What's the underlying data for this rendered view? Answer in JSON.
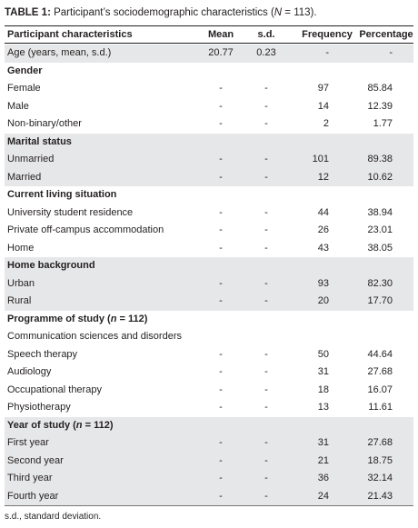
{
  "title": {
    "label": "TABLE 1:",
    "text": [
      "Participant’s sociodemographic characteristics (",
      "N",
      " = 113)."
    ]
  },
  "table": {
    "header": [
      "Participant characteristics",
      "Mean",
      "s.d.",
      "Frequency",
      "Percentage"
    ],
    "groups": [
      {
        "rows": [
          [
            "Age (years, mean, s.d.)",
            "20.77",
            "0.23",
            "-",
            "-"
          ]
        ]
      },
      {
        "heading": [
          "Gender"
        ],
        "rows": [
          [
            "Female",
            "-",
            "-",
            "97",
            "85.84"
          ],
          [
            "Male",
            "-",
            "-",
            "14",
            "12.39"
          ],
          [
            "Non-binary/other",
            "-",
            "-",
            "2",
            "1.77"
          ]
        ]
      },
      {
        "heading": [
          "Marital status"
        ],
        "rows": [
          [
            "Unmarried",
            "-",
            "-",
            "101",
            "89.38"
          ],
          [
            "Married",
            "-",
            "-",
            "12",
            "10.62"
          ]
        ]
      },
      {
        "heading": [
          "Current living situation"
        ],
        "rows": [
          [
            "University student residence",
            "-",
            "-",
            "44",
            "38.94"
          ],
          [
            "Private off-campus accommodation",
            "-",
            "-",
            "26",
            "23.01"
          ],
          [
            "Home",
            "-",
            "-",
            "43",
            "38.05"
          ]
        ]
      },
      {
        "heading": [
          "Home background"
        ],
        "rows": [
          [
            "Urban",
            "-",
            "-",
            "93",
            "82.30"
          ],
          [
            "Rural",
            "-",
            "-",
            "20",
            "17.70"
          ]
        ]
      },
      {
        "heading": [
          "Programme of study (",
          "n",
          " = 112)"
        ],
        "rows": [
          [
            "Communication sciences and disorders"
          ],
          [
            "Speech therapy",
            "-",
            "-",
            "50",
            "44.64"
          ],
          [
            "Audiology",
            "-",
            "-",
            "31",
            "27.68"
          ],
          [
            "Occupational therapy",
            "-",
            "-",
            "18",
            "16.07"
          ],
          [
            "Physiotherapy",
            "-",
            "-",
            "13",
            "11.61"
          ]
        ]
      },
      {
        "heading": [
          "Year of study (",
          "n",
          " = 112)"
        ],
        "rows": [
          [
            "First year",
            "-",
            "-",
            "31",
            "27.68"
          ],
          [
            "Second year",
            "-",
            "-",
            "21",
            "18.75"
          ],
          [
            "Third year",
            "-",
            "-",
            "36",
            "32.14"
          ],
          [
            "Fourth year",
            "-",
            "-",
            "24",
            "21.43"
          ]
        ]
      }
    ]
  },
  "footnote": "s.d., standard deviation."
}
